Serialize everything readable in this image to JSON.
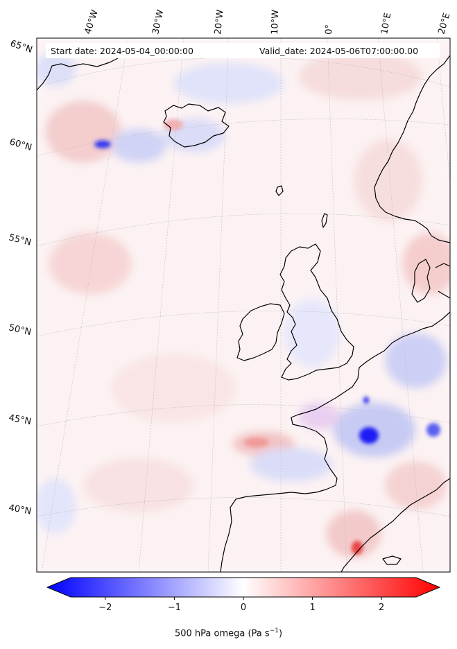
{
  "header": {
    "start_label": "Start date: 2024-05-04_00:00:00",
    "valid_label": "Valid_date: 2024-05-06T07:00:00.00"
  },
  "axes": {
    "lon_labels": [
      "40°W",
      "30°W",
      "20°W",
      "10°W",
      "0°",
      "10°E",
      "20°E"
    ],
    "lat_labels": [
      "65°N",
      "60°N",
      "55°N",
      "50°N",
      "45°N",
      "40°N"
    ]
  },
  "colorbar": {
    "ticks": [
      "−2",
      "−1",
      "0",
      "1",
      "2"
    ],
    "tick_values": [
      -2,
      -1,
      0,
      1,
      2
    ],
    "range": [
      -2.6,
      2.6
    ],
    "label": "500 hPa omega (Pa s",
    "label_exponent": "−1",
    "label_close": ")",
    "colors": {
      "negative": "#0000ff",
      "zero": "#ffffff",
      "positive": "#ff0000"
    }
  },
  "map": {
    "field": "500 hPa omega",
    "projection": "lambert-conformal",
    "coastline_color": "#000000",
    "gridline_color": "#bbbbbb"
  }
}
